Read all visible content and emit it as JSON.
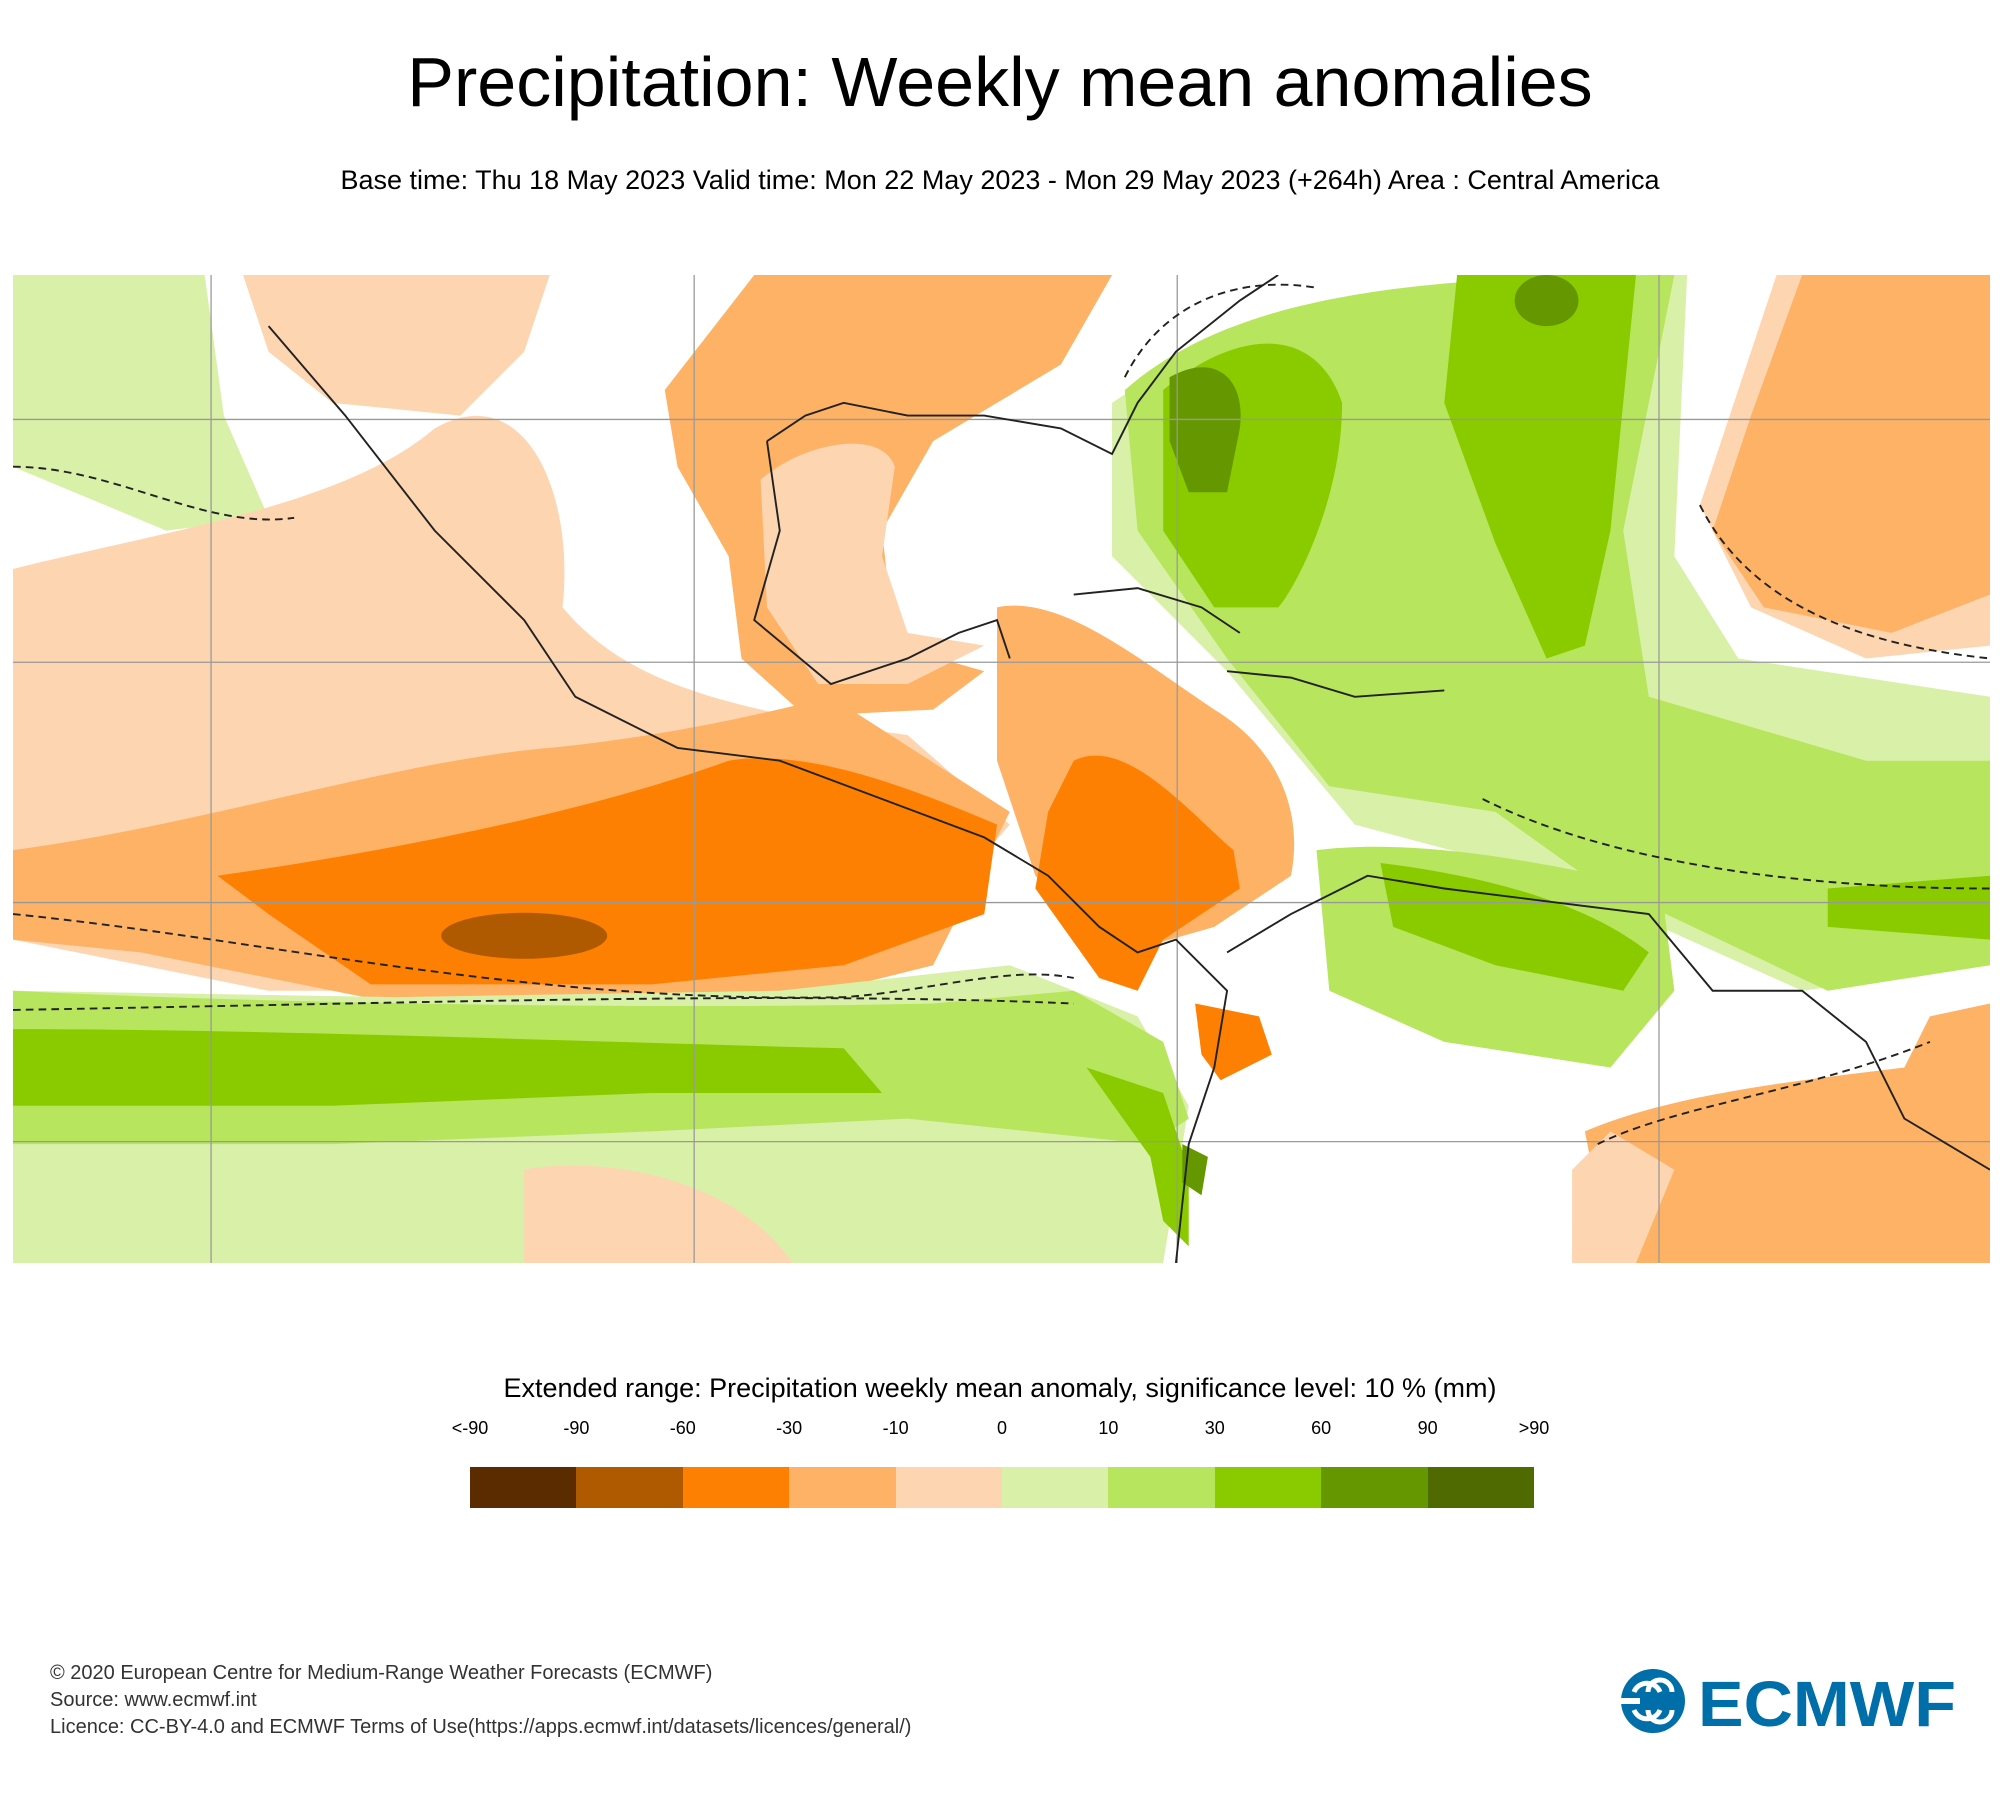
{
  "header": {
    "title": "Precipitation: Weekly mean anomalies",
    "subtitle": "Base time: Thu 18 May 2023 Valid time: Mon 22 May 2023 - Mon 29 May 2023 (+264h) Area : Central America"
  },
  "chart_data": {
    "type": "heatmap",
    "title": "Precipitation: Weekly mean anomalies",
    "area": "Central America",
    "legend": {
      "title": "Extended range: Precipitation weekly mean anomaly, significance level: 10 % (mm)",
      "labels": [
        "<-90",
        "-90",
        "-60",
        "-30",
        "-10",
        "0",
        "10",
        "30",
        "60",
        "90",
        ">90"
      ],
      "bins": [
        {
          "range": "<-90 to -90",
          "color": "#5a2c00"
        },
        {
          "range": "-90 to -60",
          "color": "#b05a00"
        },
        {
          "range": "-60 to -30",
          "color": "#fe8002"
        },
        {
          "range": "-30 to -10",
          "color": "#fdb266"
        },
        {
          "range": "-10 to 0",
          "color": "#fdd5b1"
        },
        {
          "range": "0 to 10",
          "color": "#d9f0a8"
        },
        {
          "range": "10 to 30",
          "color": "#b7e55d"
        },
        {
          "range": "30 to 60",
          "color": "#8acb00"
        },
        {
          "range": "60 to 90",
          "color": "#659700"
        },
        {
          "range": "90 to >90",
          "color": "#4f6b00"
        }
      ]
    }
  },
  "footer": {
    "copyright": "© 2020 European Centre for Medium-Range Weather Forecasts (ECMWF)",
    "source": "Source: www.ecmwf.int",
    "licence": "Licence: CC-BY-4.0 and ECMWF Terms of Use(https://apps.ecmwf.int/datasets/licences/general/)",
    "logo_text": "ECMWF",
    "logo_color": "#006ea8"
  }
}
